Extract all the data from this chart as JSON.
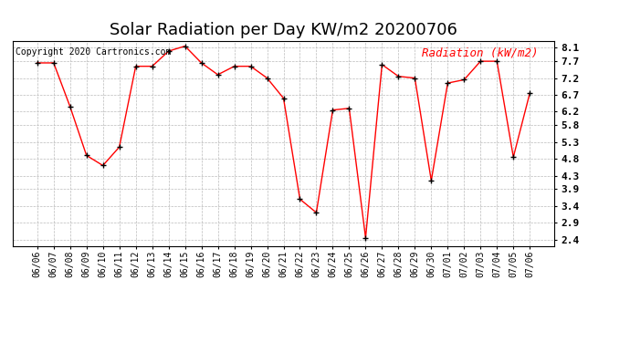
{
  "title": "Solar Radiation per Day KW/m2 20200706",
  "copyright": "Copyright 2020 Cartronics.com",
  "legend_label": "Radiation (kW/m2)",
  "dates": [
    "06/06",
    "06/07",
    "06/08",
    "06/09",
    "06/10",
    "06/11",
    "06/12",
    "06/13",
    "06/14",
    "06/15",
    "06/16",
    "06/17",
    "06/18",
    "06/19",
    "06/20",
    "06/21",
    "06/22",
    "06/23",
    "06/24",
    "06/25",
    "06/26",
    "06/27",
    "06/28",
    "06/29",
    "06/30",
    "07/01",
    "07/02",
    "07/03",
    "07/04",
    "07/05",
    "07/06"
  ],
  "values": [
    7.65,
    7.65,
    6.35,
    4.9,
    4.6,
    5.15,
    7.55,
    7.55,
    8.0,
    8.15,
    7.65,
    7.3,
    7.55,
    7.55,
    7.2,
    6.6,
    3.6,
    3.2,
    6.25,
    6.3,
    2.45,
    7.6,
    7.25,
    7.2,
    4.15,
    7.05,
    7.15,
    7.7,
    7.7,
    4.85,
    6.75
  ],
  "line_color": "red",
  "marker_color": "black",
  "background_color": "#ffffff",
  "grid_color": "#bbbbbb",
  "title_fontsize": 13,
  "copyright_fontsize": 7,
  "legend_fontsize": 9,
  "tick_fontsize": 7,
  "ytick_fontsize": 8,
  "ylim_min": 2.2,
  "ylim_max": 8.3,
  "yticks": [
    2.4,
    2.9,
    3.4,
    3.9,
    4.3,
    4.8,
    5.3,
    5.8,
    6.2,
    6.7,
    7.2,
    7.7,
    8.1
  ]
}
